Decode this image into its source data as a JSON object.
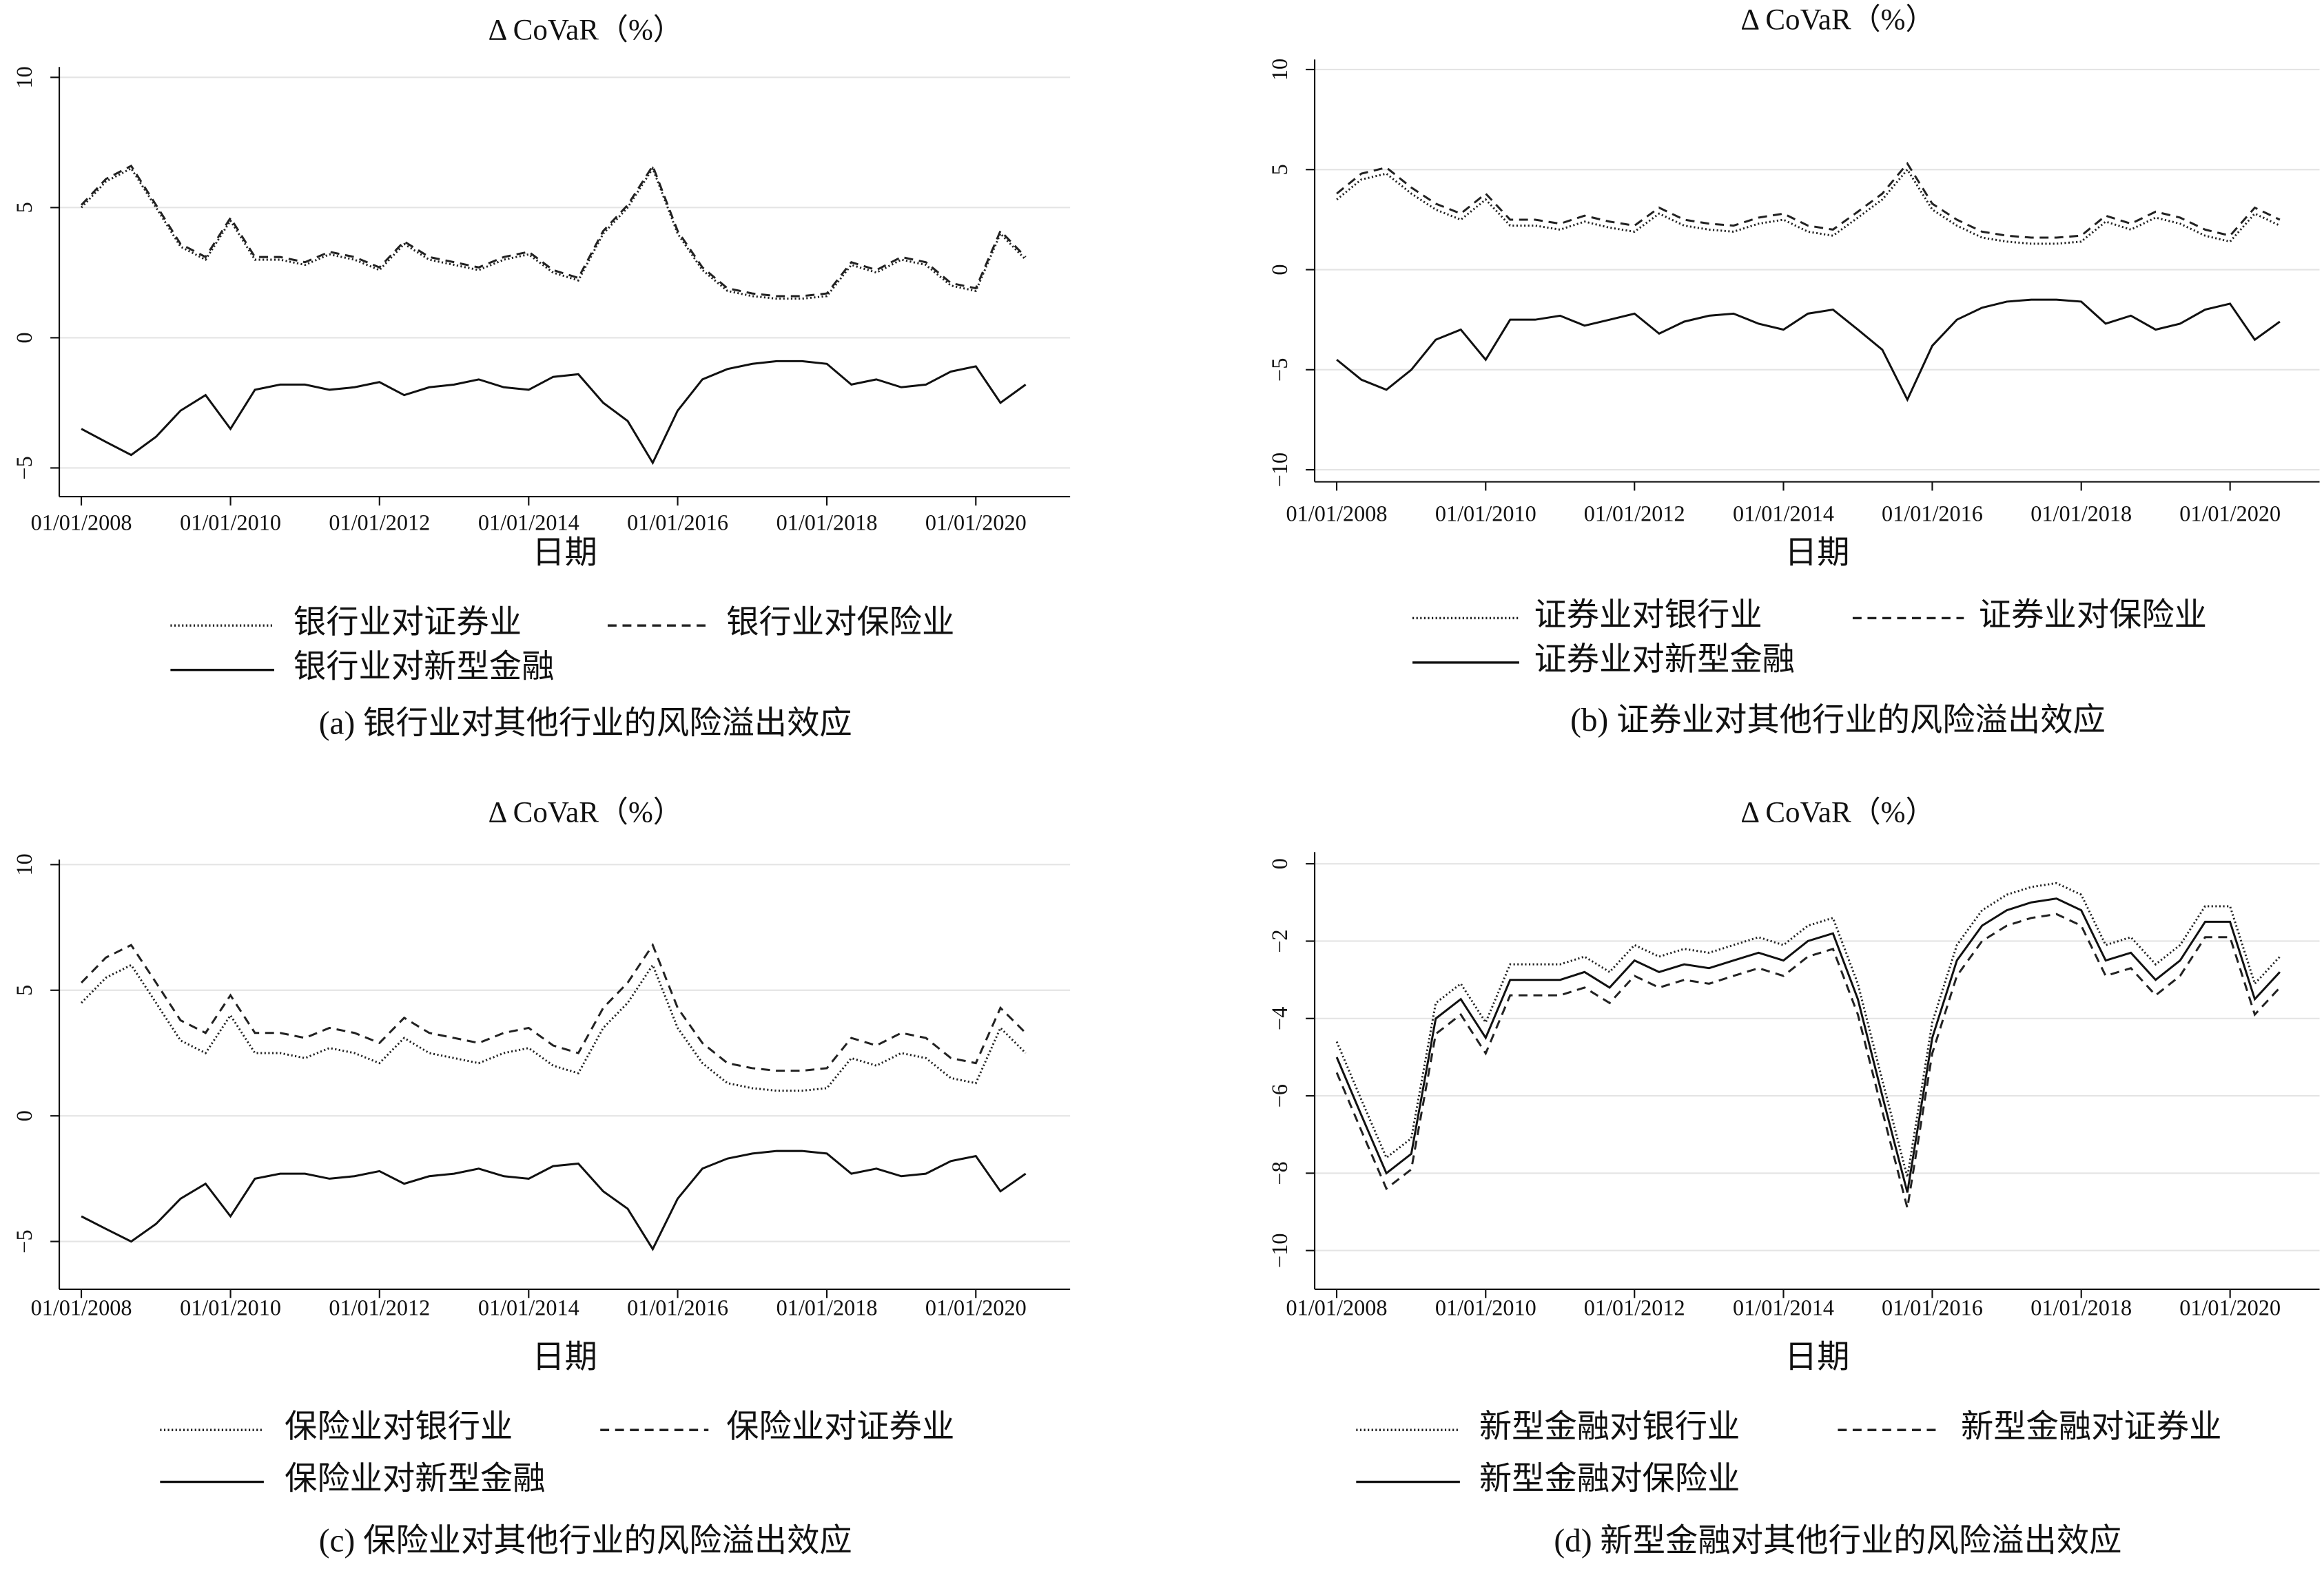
{
  "chart_data": [
    {
      "type": "line",
      "title": "Δ CoVaR（%）",
      "xlabel": "日期",
      "caption": "(a) 银行业对其他行业的风险溢出效应",
      "x": [
        "2008-01-01",
        "2008-05-01",
        "2008-09-01",
        "2009-01-01",
        "2009-05-01",
        "2009-09-01",
        "2010-01-01",
        "2010-05-01",
        "2010-09-01",
        "2011-01-01",
        "2011-05-01",
        "2011-09-01",
        "2012-01-01",
        "2012-05-01",
        "2012-09-01",
        "2013-01-01",
        "2013-05-01",
        "2013-09-01",
        "2014-01-01",
        "2014-05-01",
        "2014-09-01",
        "2015-01-01",
        "2015-05-01",
        "2015-09-01",
        "2016-01-01",
        "2016-05-01",
        "2016-09-01",
        "2017-01-01",
        "2017-05-01",
        "2017-09-01",
        "2018-01-01",
        "2018-05-01",
        "2018-09-01",
        "2019-01-01",
        "2019-05-01",
        "2019-09-01",
        "2020-01-01",
        "2020-05-01",
        "2020-09-01"
      ],
      "xlim": [
        "2007-09-15",
        "2021-04-07"
      ],
      "xticks": [
        {
          "value": "2008-01-01",
          "label": "01/01/2008"
        },
        {
          "value": "2010-01-01",
          "label": "01/01/2010"
        },
        {
          "value": "2012-01-01",
          "label": "01/01/2012"
        },
        {
          "value": "2014-01-01",
          "label": "01/01/2014"
        },
        {
          "value": "2016-01-01",
          "label": "01/01/2016"
        },
        {
          "value": "2018-01-01",
          "label": "01/01/2018"
        },
        {
          "value": "2020-01-01",
          "label": "01/01/2020"
        }
      ],
      "ylim": [
        -6.1,
        10.4
      ],
      "yticks": [
        {
          "value": -5,
          "label": "−5"
        },
        0,
        5,
        10
      ],
      "grid": true,
      "series": [
        {
          "name": "银行业对证券业",
          "color": "#222",
          "line_style": "dotted",
          "values": [
            5.0,
            6.0,
            6.5,
            5.0,
            3.5,
            3.0,
            4.5,
            3.0,
            3.0,
            2.8,
            3.2,
            3.0,
            2.6,
            3.6,
            3.0,
            2.8,
            2.6,
            3.0,
            3.2,
            2.5,
            2.2,
            4.0,
            5.0,
            6.5,
            4.0,
            2.6,
            1.8,
            1.6,
            1.5,
            1.5,
            1.6,
            2.8,
            2.5,
            3.0,
            2.8,
            2.0,
            1.8,
            4.0,
            3.0
          ]
        },
        {
          "name": "银行业对保险业",
          "color": "#222",
          "line_style": "dashed",
          "values": [
            5.1,
            6.1,
            6.6,
            5.1,
            3.6,
            3.1,
            4.6,
            3.1,
            3.1,
            2.9,
            3.3,
            3.1,
            2.7,
            3.7,
            3.1,
            2.9,
            2.7,
            3.1,
            3.3,
            2.6,
            2.3,
            4.1,
            5.1,
            6.6,
            4.1,
            2.7,
            1.9,
            1.7,
            1.6,
            1.6,
            1.7,
            2.9,
            2.6,
            3.1,
            2.9,
            2.1,
            1.9,
            4.1,
            3.1
          ]
        },
        {
          "name": "银行业对新型金融",
          "color": "#111",
          "line_style": "solid",
          "values": [
            -3.5,
            -4.0,
            -4.5,
            -3.8,
            -2.8,
            -2.2,
            -3.5,
            -2.0,
            -1.8,
            -1.8,
            -2.0,
            -1.9,
            -1.7,
            -2.2,
            -1.9,
            -1.8,
            -1.6,
            -1.9,
            -2.0,
            -1.5,
            -1.4,
            -2.5,
            -3.2,
            -4.8,
            -2.8,
            -1.6,
            -1.2,
            -1.0,
            -0.9,
            -0.9,
            -1.0,
            -1.8,
            -1.6,
            -1.9,
            -1.8,
            -1.3,
            -1.1,
            -2.5,
            -1.8
          ]
        }
      ]
    },
    {
      "type": "line",
      "title": "Δ CoVaR（%）",
      "xlabel": "日期",
      "caption": "(b) 证券业对其他行业的风险溢出效应",
      "x": [
        "2008-01-01",
        "2008-05-01",
        "2008-09-01",
        "2009-01-01",
        "2009-05-01",
        "2009-09-01",
        "2010-01-01",
        "2010-05-01",
        "2010-09-01",
        "2011-01-01",
        "2011-05-01",
        "2011-09-01",
        "2012-01-01",
        "2012-05-01",
        "2012-09-01",
        "2013-01-01",
        "2013-05-01",
        "2013-09-01",
        "2014-01-01",
        "2014-05-01",
        "2014-09-01",
        "2015-01-01",
        "2015-05-01",
        "2015-09-01",
        "2016-01-01",
        "2016-05-01",
        "2016-09-01",
        "2017-01-01",
        "2017-05-01",
        "2017-09-01",
        "2018-01-01",
        "2018-05-01",
        "2018-09-01",
        "2019-01-01",
        "2019-05-01",
        "2019-09-01",
        "2020-01-01",
        "2020-05-01",
        "2020-09-01"
      ],
      "xlim": [
        "2007-09-15",
        "2021-03-15"
      ],
      "xticks": [
        {
          "value": "2008-01-01",
          "label": "01/01/2008"
        },
        {
          "value": "2010-01-01",
          "label": "01/01/2010"
        },
        {
          "value": "2012-01-01",
          "label": "01/01/2012"
        },
        {
          "value": "2014-01-01",
          "label": "01/01/2014"
        },
        {
          "value": "2016-01-01",
          "label": "01/01/2016"
        },
        {
          "value": "2018-01-01",
          "label": "01/01/2018"
        },
        {
          "value": "2020-01-01",
          "label": "01/01/2020"
        }
      ],
      "ylim": [
        -10.6,
        10.5
      ],
      "yticks": [
        {
          "value": -10,
          "label": "−10"
        },
        {
          "value": -5,
          "label": "−5"
        },
        0,
        5,
        10
      ],
      "grid": true,
      "series": [
        {
          "name": "证券业对银行业",
          "color": "#222",
          "line_style": "dotted",
          "values": [
            3.5,
            4.5,
            4.8,
            3.8,
            3.0,
            2.5,
            3.5,
            2.2,
            2.2,
            2.0,
            2.4,
            2.1,
            1.9,
            2.8,
            2.2,
            2.0,
            1.9,
            2.3,
            2.5,
            1.9,
            1.7,
            2.6,
            3.5,
            5.0,
            3.0,
            2.2,
            1.6,
            1.4,
            1.3,
            1.3,
            1.4,
            2.4,
            2.0,
            2.6,
            2.3,
            1.7,
            1.4,
            2.8,
            2.2
          ]
        },
        {
          "name": "证券业对保险业",
          "color": "#222",
          "line_style": "dashed",
          "values": [
            3.8,
            4.8,
            5.1,
            4.1,
            3.3,
            2.8,
            3.8,
            2.5,
            2.5,
            2.3,
            2.7,
            2.4,
            2.2,
            3.1,
            2.5,
            2.3,
            2.2,
            2.6,
            2.8,
            2.2,
            2.0,
            2.9,
            3.8,
            5.3,
            3.3,
            2.5,
            1.9,
            1.7,
            1.6,
            1.6,
            1.7,
            2.7,
            2.3,
            2.9,
            2.6,
            2.0,
            1.7,
            3.1,
            2.5
          ]
        },
        {
          "name": "证券业对新型金融",
          "color": "#111",
          "line_style": "solid",
          "values": [
            -4.5,
            -5.5,
            -6.0,
            -5.0,
            -3.5,
            -3.0,
            -4.5,
            -2.5,
            -2.5,
            -2.3,
            -2.8,
            -2.5,
            -2.2,
            -3.2,
            -2.6,
            -2.3,
            -2.2,
            -2.7,
            -3.0,
            -2.2,
            -2.0,
            -3.0,
            -4.0,
            -6.5,
            -3.8,
            -2.5,
            -1.9,
            -1.6,
            -1.5,
            -1.5,
            -1.6,
            -2.7,
            -2.3,
            -3.0,
            -2.7,
            -2.0,
            -1.7,
            -3.5,
            -2.6
          ]
        }
      ]
    },
    {
      "type": "line",
      "title": "Δ CoVaR（%）",
      "xlabel": "日期",
      "caption": "(c) 保险业对其他行业的风险溢出效应",
      "x": [
        "2008-01-01",
        "2008-05-01",
        "2008-09-01",
        "2009-01-01",
        "2009-05-01",
        "2009-09-01",
        "2010-01-01",
        "2010-05-01",
        "2010-09-01",
        "2011-01-01",
        "2011-05-01",
        "2011-09-01",
        "2012-01-01",
        "2012-05-01",
        "2012-09-01",
        "2013-01-01",
        "2013-05-01",
        "2013-09-01",
        "2014-01-01",
        "2014-05-01",
        "2014-09-01",
        "2015-01-01",
        "2015-05-01",
        "2015-09-01",
        "2016-01-01",
        "2016-05-01",
        "2016-09-01",
        "2017-01-01",
        "2017-05-01",
        "2017-09-01",
        "2018-01-01",
        "2018-05-01",
        "2018-09-01",
        "2019-01-01",
        "2019-05-01",
        "2019-09-01",
        "2020-01-01",
        "2020-05-01",
        "2020-09-01"
      ],
      "xlim": [
        "2007-09-15",
        "2021-04-07"
      ],
      "xticks": [
        {
          "value": "2008-01-01",
          "label": "01/01/2008"
        },
        {
          "value": "2010-01-01",
          "label": "01/01/2010"
        },
        {
          "value": "2012-01-01",
          "label": "01/01/2012"
        },
        {
          "value": "2014-01-01",
          "label": "01/01/2014"
        },
        {
          "value": "2016-01-01",
          "label": "01/01/2016"
        },
        {
          "value": "2018-01-01",
          "label": "01/01/2018"
        },
        {
          "value": "2020-01-01",
          "label": "01/01/2020"
        }
      ],
      "ylim": [
        -6.9,
        10.2
      ],
      "yticks": [
        {
          "value": -5,
          "label": "−5"
        },
        0,
        5,
        10
      ],
      "grid": true,
      "series": [
        {
          "name": "保险业对银行业",
          "color": "#222",
          "line_style": "dotted",
          "values": [
            4.5,
            5.5,
            6.0,
            4.5,
            3.0,
            2.5,
            4.0,
            2.5,
            2.5,
            2.3,
            2.7,
            2.5,
            2.1,
            3.1,
            2.5,
            2.3,
            2.1,
            2.5,
            2.7,
            2.0,
            1.7,
            3.5,
            4.5,
            6.0,
            3.5,
            2.1,
            1.3,
            1.1,
            1.0,
            1.0,
            1.1,
            2.3,
            2.0,
            2.5,
            2.3,
            1.5,
            1.3,
            3.5,
            2.5
          ]
        },
        {
          "name": "保险业对证券业",
          "color": "#222",
          "line_style": "dashed",
          "values": [
            5.3,
            6.3,
            6.8,
            5.3,
            3.8,
            3.3,
            4.8,
            3.3,
            3.3,
            3.1,
            3.5,
            3.3,
            2.9,
            3.9,
            3.3,
            3.1,
            2.9,
            3.3,
            3.5,
            2.8,
            2.5,
            4.3,
            5.3,
            6.8,
            4.3,
            2.9,
            2.1,
            1.9,
            1.8,
            1.8,
            1.9,
            3.1,
            2.8,
            3.3,
            3.1,
            2.3,
            2.1,
            4.3,
            3.3
          ]
        },
        {
          "name": "保险业对新型金融",
          "color": "#111",
          "line_style": "solid",
          "values": [
            -4.0,
            -4.5,
            -5.0,
            -4.3,
            -3.3,
            -2.7,
            -4.0,
            -2.5,
            -2.3,
            -2.3,
            -2.5,
            -2.4,
            -2.2,
            -2.7,
            -2.4,
            -2.3,
            -2.1,
            -2.4,
            -2.5,
            -2.0,
            -1.9,
            -3.0,
            -3.7,
            -5.3,
            -3.3,
            -2.1,
            -1.7,
            -1.5,
            -1.4,
            -1.4,
            -1.5,
            -2.3,
            -2.1,
            -2.4,
            -2.3,
            -1.8,
            -1.6,
            -3.0,
            -2.3
          ]
        }
      ]
    },
    {
      "type": "line",
      "title": "Δ CoVaR（%）",
      "xlabel": "日期",
      "caption": "(d) 新型金融对其他行业的风险溢出效应",
      "x": [
        "2008-01-01",
        "2008-05-01",
        "2008-09-01",
        "2009-01-01",
        "2009-05-01",
        "2009-09-01",
        "2010-01-01",
        "2010-05-01",
        "2010-09-01",
        "2011-01-01",
        "2011-05-01",
        "2011-09-01",
        "2012-01-01",
        "2012-05-01",
        "2012-09-01",
        "2013-01-01",
        "2013-05-01",
        "2013-09-01",
        "2014-01-01",
        "2014-05-01",
        "2014-09-01",
        "2015-01-01",
        "2015-05-01",
        "2015-09-01",
        "2016-01-01",
        "2016-05-01",
        "2016-09-01",
        "2017-01-01",
        "2017-05-01",
        "2017-09-01",
        "2018-01-01",
        "2018-05-01",
        "2018-09-01",
        "2019-01-01",
        "2019-05-01",
        "2019-09-01",
        "2020-01-01",
        "2020-05-01",
        "2020-09-01"
      ],
      "xlim": [
        "2007-09-15",
        "2021-03-15"
      ],
      "xticks": [
        {
          "value": "2008-01-01",
          "label": "01/01/2008"
        },
        {
          "value": "2010-01-01",
          "label": "01/01/2010"
        },
        {
          "value": "2012-01-01",
          "label": "01/01/2012"
        },
        {
          "value": "2014-01-01",
          "label": "01/01/2014"
        },
        {
          "value": "2016-01-01",
          "label": "01/01/2016"
        },
        {
          "value": "2018-01-01",
          "label": "01/01/2018"
        },
        {
          "value": "2020-01-01",
          "label": "01/01/2020"
        }
      ],
      "ylim": [
        -11.0,
        0.3
      ],
      "yticks": [
        {
          "value": -10,
          "label": "−10"
        },
        {
          "value": -8,
          "label": "−8"
        },
        {
          "value": -6,
          "label": "−6"
        },
        {
          "value": -4,
          "label": "−4"
        },
        {
          "value": -2,
          "label": "−2"
        },
        0
      ],
      "grid": true,
      "series": [
        {
          "name": "新型金融对银行业",
          "color": "#222",
          "line_style": "dotted",
          "values": [
            -4.6,
            -6.1,
            -7.6,
            -7.1,
            -3.6,
            -3.1,
            -4.1,
            -2.6,
            -2.6,
            -2.6,
            -2.4,
            -2.8,
            -2.1,
            -2.4,
            -2.2,
            -2.3,
            -2.1,
            -1.9,
            -2.1,
            -1.6,
            -1.4,
            -3.1,
            -5.6,
            -8.1,
            -4.1,
            -2.1,
            -1.2,
            -0.8,
            -0.6,
            -0.5,
            -0.8,
            -2.1,
            -1.9,
            -2.6,
            -2.1,
            -1.1,
            -1.1,
            -3.1,
            -2.4
          ]
        },
        {
          "name": "新型金融对证券业",
          "color": "#222",
          "line_style": "dashed",
          "values": [
            -5.4,
            -6.9,
            -8.4,
            -7.9,
            -4.4,
            -3.9,
            -4.9,
            -3.4,
            -3.4,
            -3.4,
            -3.2,
            -3.6,
            -2.9,
            -3.2,
            -3.0,
            -3.1,
            -2.9,
            -2.7,
            -2.9,
            -2.4,
            -2.2,
            -3.9,
            -6.4,
            -8.9,
            -4.9,
            -2.9,
            -2.0,
            -1.6,
            -1.4,
            -1.3,
            -1.6,
            -2.9,
            -2.7,
            -3.4,
            -2.9,
            -1.9,
            -1.9,
            -3.9,
            -3.2
          ]
        },
        {
          "name": "新型金融对保险业",
          "color": "#111",
          "line_style": "solid",
          "values": [
            -5.0,
            -6.5,
            -8.0,
            -7.5,
            -4.0,
            -3.5,
            -4.5,
            -3.0,
            -3.0,
            -3.0,
            -2.8,
            -3.2,
            -2.5,
            -2.8,
            -2.6,
            -2.7,
            -2.5,
            -2.3,
            -2.5,
            -2.0,
            -1.8,
            -3.5,
            -6.0,
            -8.5,
            -4.5,
            -2.5,
            -1.6,
            -1.2,
            -1.0,
            -0.9,
            -1.2,
            -2.5,
            -2.3,
            -3.0,
            -2.5,
            -1.5,
            -1.5,
            -3.5,
            -2.8
          ]
        }
      ]
    }
  ]
}
